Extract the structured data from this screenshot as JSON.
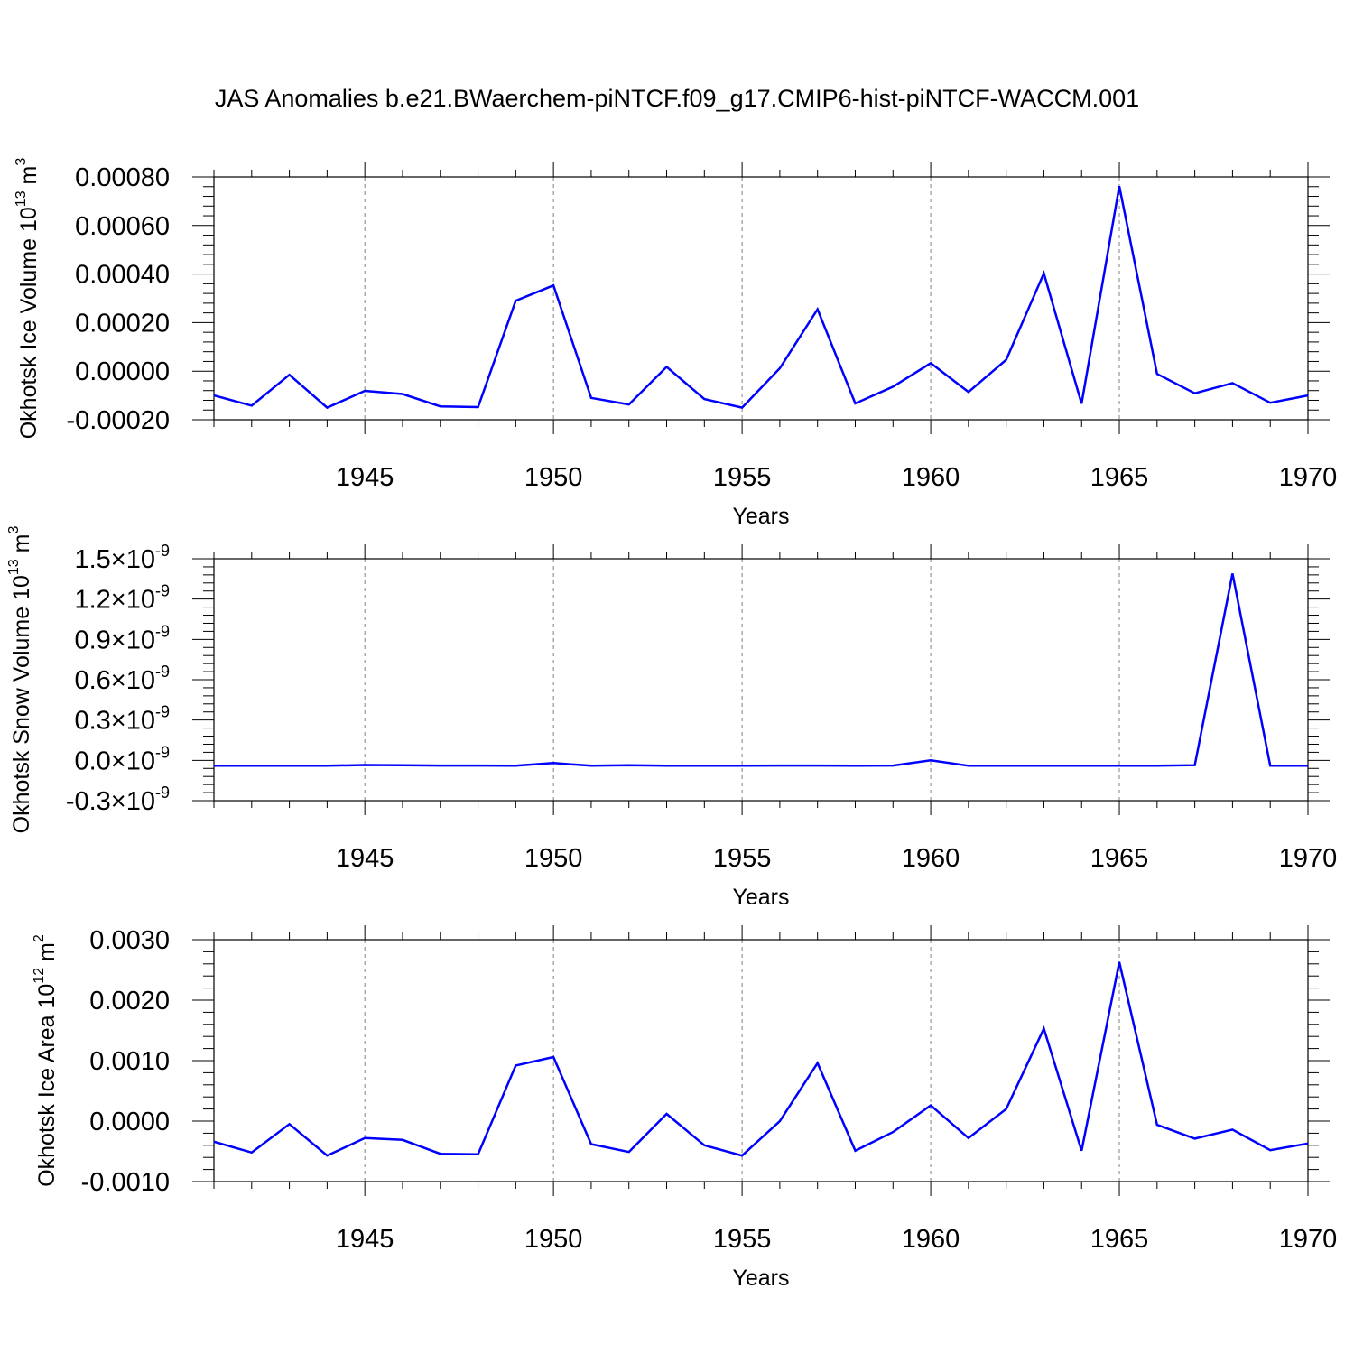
{
  "title": "JAS Anomalies b.e21.BWaerchem-piNTCF.f09_g17.CMIP6-hist-piNTCF-WACCM.001",
  "colors": {
    "line": "#0000ff",
    "axis": "#000000",
    "grid": "#808080"
  },
  "chart_data": [
    {
      "type": "line",
      "ylabel": {
        "main": "Okhotsk Ice Volume 10",
        "exp": "13",
        "unit": " m",
        "unit_exp": "3"
      },
      "xlabel": "Years",
      "xlim": [
        1941,
        1970
      ],
      "ylim": [
        -0.0002,
        0.0008
      ],
      "yticks": [
        -0.0002,
        0.0,
        0.0002,
        0.0004,
        0.0006,
        0.0008
      ],
      "yticklabels": [
        "-0.00020",
        "0.00000",
        "0.00020",
        "0.00040",
        "0.00060",
        "0.00080"
      ],
      "xticks": [
        1945,
        1950,
        1955,
        1960,
        1965,
        1970
      ],
      "xticklabels": [
        "1945",
        "1950",
        "1955",
        "1960",
        "1965",
        "1970"
      ],
      "x": [
        1941,
        1942,
        1943,
        1944,
        1945,
        1946,
        1947,
        1948,
        1949,
        1950,
        1951,
        1952,
        1953,
        1954,
        1955,
        1956,
        1957,
        1958,
        1959,
        1960,
        1961,
        1962,
        1963,
        1964,
        1965,
        1966,
        1967,
        1968,
        1969,
        1970
      ],
      "series": [
        {
          "name": "Ice Volume",
          "values": [
            -0.0001,
            -0.000142,
            -1.5e-05,
            -0.00015,
            -8.1e-05,
            -9.4e-05,
            -0.000145,
            -0.000148,
            0.00029,
            0.000353,
            -0.00011,
            -0.000137,
            1.8e-05,
            -0.000115,
            -0.00015,
            1.2e-05,
            0.000255,
            -0.000133,
            -6.4e-05,
            3.3e-05,
            -8.6e-05,
            4.7e-05,
            0.000403,
            -0.000134,
            0.000762,
            -1.1e-05,
            -9.1e-05,
            -4.9e-05,
            -0.00013,
            -0.0001
          ]
        }
      ]
    },
    {
      "type": "line",
      "ylabel": {
        "main": "Okhotsk Snow Volume 10",
        "exp": "13",
        "unit": " m",
        "unit_exp": "3"
      },
      "xlabel": "Years",
      "xlim": [
        1941,
        1970
      ],
      "ylim": [
        -3e-10,
        1.5e-09
      ],
      "yticks": [
        -3e-10,
        0.0,
        3e-10,
        6e-10,
        9e-10,
        1.2e-09,
        1.5e-09
      ],
      "yticklabels": [
        "-0.3",
        "0.0",
        "0.3",
        "0.6",
        "0.9",
        "1.2",
        "1.5"
      ],
      "ytick_multiplier": "×10",
      "ytick_exp": "-9",
      "xticks": [
        1945,
        1950,
        1955,
        1960,
        1965,
        1970
      ],
      "xticklabels": [
        "1945",
        "1950",
        "1955",
        "1960",
        "1965",
        "1970"
      ],
      "x": [
        1941,
        1942,
        1943,
        1944,
        1945,
        1946,
        1947,
        1948,
        1949,
        1950,
        1951,
        1952,
        1953,
        1954,
        1955,
        1956,
        1957,
        1958,
        1959,
        1960,
        1961,
        1962,
        1963,
        1964,
        1965,
        1966,
        1967,
        1968,
        1969,
        1970
      ],
      "series": [
        {
          "name": "Snow Volume",
          "values": [
            -4e-11,
            -4e-11,
            -4e-11,
            -4e-11,
            -3.5e-11,
            -3.7e-11,
            -3.9e-11,
            -3.9e-11,
            -4e-11,
            -2e-11,
            -4e-11,
            -3.7e-11,
            -4e-11,
            -4e-11,
            -4e-11,
            -3.9e-11,
            -3.9e-11,
            -4e-11,
            -3.9e-11,
            0.0,
            -4e-11,
            -4e-11,
            -4e-11,
            -4e-11,
            -4e-11,
            -4e-11,
            -3.6e-11,
            1.39e-09,
            -4e-11,
            -4e-11
          ]
        }
      ]
    },
    {
      "type": "line",
      "ylabel": {
        "main": "Okhotsk Ice Area 10",
        "exp": "12",
        "unit": " m",
        "unit_exp": "2"
      },
      "xlabel": "Years",
      "xlim": [
        1941,
        1970
      ],
      "ylim": [
        -0.001,
        0.003
      ],
      "yticks": [
        -0.001,
        0.0,
        0.001,
        0.002,
        0.003
      ],
      "yticklabels": [
        "-0.0010",
        "0.0000",
        "0.0010",
        "0.0020",
        "0.0030"
      ],
      "xticks": [
        1945,
        1950,
        1955,
        1960,
        1965,
        1970
      ],
      "xticklabels": [
        "1945",
        "1950",
        "1955",
        "1960",
        "1965",
        "1970"
      ],
      "x": [
        1941,
        1942,
        1943,
        1944,
        1945,
        1946,
        1947,
        1948,
        1949,
        1950,
        1951,
        1952,
        1953,
        1954,
        1955,
        1956,
        1957,
        1958,
        1959,
        1960,
        1961,
        1962,
        1963,
        1964,
        1965,
        1966,
        1967,
        1968,
        1969,
        1970
      ],
      "series": [
        {
          "name": "Ice Area",
          "values": [
            -0.00034,
            -0.00052,
            -5e-05,
            -0.00057,
            -0.00028,
            -0.00031,
            -0.00054,
            -0.00055,
            0.00092,
            0.00106,
            -0.00038,
            -0.00051,
            0.00012,
            -0.0004,
            -0.00057,
            0.0,
            0.00096,
            -0.00049,
            -0.00018,
            0.00026,
            -0.00028,
            0.0002,
            0.00153,
            -0.00049,
            0.00263,
            -6e-05,
            -0.00029,
            -0.00014,
            -0.00048,
            -0.00037
          ]
        }
      ]
    }
  ]
}
